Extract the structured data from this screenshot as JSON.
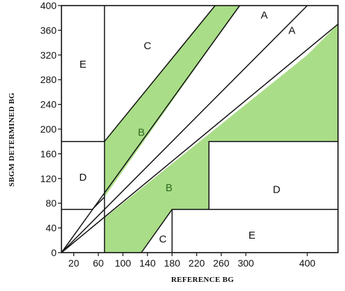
{
  "chart_data": {
    "type": "area",
    "title": "",
    "xlabel": "REFERENCE BG",
    "ylabel": "SBGM DETERMINED BG",
    "xlim": [
      0,
      450
    ],
    "ylim": [
      0,
      400
    ],
    "x_ticks": [
      {
        "value": 20,
        "label": "20"
      },
      {
        "value": 60,
        "label": "60"
      },
      {
        "value": 100,
        "label": "100"
      },
      {
        "value": 140,
        "label": "140"
      },
      {
        "value": 180,
        "label": "180"
      },
      {
        "value": 220,
        "label": "220"
      },
      {
        "value": 260,
        "label": "260"
      },
      {
        "value": 300,
        "label": "300"
      },
      {
        "value": 400,
        "label": "400"
      }
    ],
    "y_ticks": [
      {
        "value": 0,
        "label": "0"
      },
      {
        "value": 40,
        "label": "40"
      },
      {
        "value": 80,
        "label": "80"
      },
      {
        "value": 120,
        "label": "120"
      },
      {
        "value": 160,
        "label": "160"
      },
      {
        "value": 200,
        "label": "200"
      },
      {
        "value": 240,
        "label": "240"
      },
      {
        "value": 280,
        "label": "280"
      },
      {
        "value": 320,
        "label": "320"
      },
      {
        "value": 360,
        "label": "360"
      },
      {
        "value": 400,
        "label": "400"
      }
    ],
    "fill_color": "#aadd88",
    "shaded_regions": [
      {
        "zone": "B",
        "points": [
          [
            70,
            180
          ],
          [
            70,
            90
          ],
          [
            290,
            400
          ],
          [
            250,
            400
          ]
        ]
      },
      {
        "zone": "B",
        "points": [
          [
            70,
            56
          ],
          [
            400,
            320
          ],
          [
            450,
            370
          ],
          [
            450,
            180
          ],
          [
            240,
            180
          ],
          [
            240,
            70
          ],
          [
            180,
            70
          ],
          [
            130,
            0
          ],
          [
            70,
            0
          ]
        ]
      }
    ],
    "boundary_lines": [
      {
        "points": [
          [
            0,
            0
          ],
          [
            290,
            400
          ]
        ]
      },
      {
        "points": [
          [
            0,
            0
          ],
          [
            400,
            400
          ]
        ]
      },
      {
        "points": [
          [
            0,
            0
          ],
          [
            450,
            370
          ]
        ]
      },
      {
        "points": [
          [
            70,
            180
          ],
          [
            250,
            400
          ]
        ]
      },
      {
        "points": [
          [
            70,
            180
          ],
          [
            0,
            180
          ]
        ]
      },
      {
        "points": [
          [
            70,
            400
          ],
          [
            70,
            0
          ]
        ]
      },
      {
        "points": [
          [
            0,
            70
          ],
          [
            50,
            70
          ],
          [
            70,
            90
          ]
        ]
      },
      {
        "points": [
          [
            130,
            0
          ],
          [
            180,
            70
          ]
        ]
      },
      {
        "points": [
          [
            180,
            0
          ],
          [
            180,
            70
          ],
          [
            450,
            70
          ]
        ]
      },
      {
        "points": [
          [
            240,
            70
          ],
          [
            240,
            180
          ],
          [
            450,
            180
          ]
        ]
      }
    ],
    "zone_labels": [
      {
        "label": "A",
        "x": 330,
        "y": 385
      },
      {
        "label": "A",
        "x": 375,
        "y": 360
      },
      {
        "label": "B",
        "x": 130,
        "y": 195
      },
      {
        "label": "B",
        "x": 175,
        "y": 105
      },
      {
        "label": "C",
        "x": 140,
        "y": 335
      },
      {
        "label": "C",
        "x": 165,
        "y": 22
      },
      {
        "label": "D",
        "x": 35,
        "y": 122
      },
      {
        "label": "D",
        "x": 350,
        "y": 102
      },
      {
        "label": "E",
        "x": 35,
        "y": 305
      },
      {
        "label": "E",
        "x": 310,
        "y": 28
      }
    ]
  }
}
